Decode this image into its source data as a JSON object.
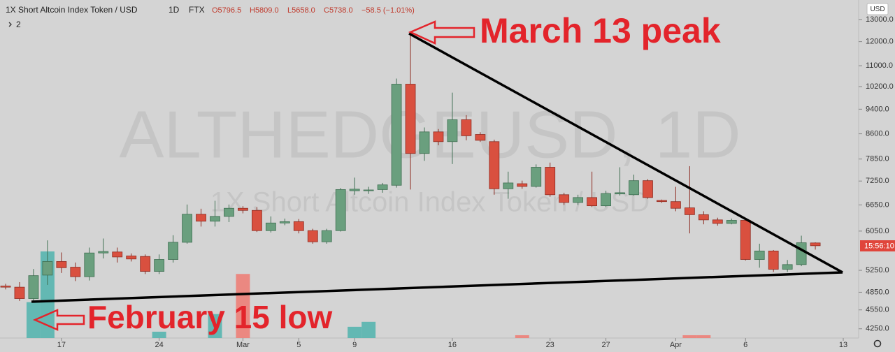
{
  "chart_data": {
    "type": "candlestick",
    "header": {
      "symbol": "1X Short Altcoin Index Token / USD",
      "interval": "1D",
      "exchange": "FTX",
      "open": "O5796.5",
      "high": "H5809.0",
      "low": "L5658.0",
      "close": "C5738.0",
      "change": "−58.5 (−1.01%)",
      "indicators": "2"
    },
    "watermark": {
      "ticker": "ALTHEDGEUSD, 1D",
      "description": "1X Short Altcoin Index Token / USD"
    },
    "currency": "USD",
    "countdown": "15:56:10",
    "annotations": [
      "March 13 peak",
      "February 15 low"
    ],
    "categories": [
      null,
      null,
      null,
      null,
      "17",
      null,
      null,
      null,
      null,
      null,
      null,
      "24",
      null,
      null,
      null,
      null,
      null,
      "Mar",
      null,
      null,
      null,
      "5",
      null,
      null,
      null,
      "9",
      null,
      null,
      null,
      null,
      null,
      null,
      "16",
      null,
      null,
      null,
      null,
      null,
      null,
      "23",
      null,
      null,
      null,
      "27",
      null,
      null,
      null,
      null,
      "Apr",
      null,
      null,
      null,
      null,
      "6",
      null,
      null,
      null,
      null,
      null,
      null,
      "13"
    ],
    "open": [
      4960,
      4940,
      4740,
      5160,
      5420,
      5310,
      5130,
      5590,
      5610,
      5530,
      5520,
      5230,
      5460,
      5810,
      6430,
      6270,
      6380,
      6570,
      6520,
      6060,
      6230,
      6260,
      6060,
      5820,
      6060,
      7000,
      7000,
      7030,
      7140,
      10290,
      8010,
      8660,
      8360,
      9050,
      8580,
      8360,
      7050,
      7180,
      7110,
      7620,
      6900,
      6710,
      6830,
      6630,
      6920,
      6900,
      7260,
      6760,
      6730,
      6580,
      6420,
      6300,
      6220,
      6290,
      5460,
      5630,
      5270,
      5360,
      5796.5,
      null,
      null
    ],
    "high": [
      5000,
      5030,
      5275,
      5850,
      5600,
      5400,
      5700,
      5890,
      5700,
      5580,
      5560,
      5560,
      5960,
      6660,
      6560,
      6750,
      6660,
      6620,
      6600,
      6380,
      6330,
      6320,
      6100,
      6100,
      7070,
      7340,
      7100,
      7200,
      10500,
      12300,
      8800,
      8750,
      9980,
      9200,
      8650,
      8420,
      7500,
      7260,
      7700,
      7750,
      6950,
      6900,
      7500,
      7000,
      7620,
      7420,
      7300,
      6780,
      7100,
      7650,
      6500,
      6350,
      6330,
      6330,
      5780,
      5650,
      5450,
      5950,
      5809,
      null,
      null
    ],
    "low": [
      4900,
      4700,
      4690,
      4980,
      5200,
      5050,
      5060,
      5480,
      5400,
      5420,
      5180,
      5180,
      5400,
      5780,
      6150,
      6150,
      6250,
      6450,
      6030,
      6020,
      6180,
      6000,
      5780,
      5780,
      6040,
      6900,
      6920,
      6950,
      7080,
      7030,
      7800,
      8250,
      7710,
      8400,
      8350,
      6900,
      6800,
      7050,
      7080,
      6850,
      6650,
      6650,
      6600,
      6600,
      6880,
      6880,
      6800,
      6700,
      6500,
      6000,
      6200,
      6170,
      6200,
      5440,
      5300,
      5220,
      5220,
      5330,
      5658,
      null,
      null
    ],
    "close": [
      4940,
      4740,
      5150,
      5420,
      5300,
      5130,
      5590,
      5620,
      5510,
      5470,
      5230,
      5460,
      5810,
      6430,
      6270,
      6380,
      6570,
      6520,
      6060,
      6230,
      6260,
      6060,
      5820,
      6060,
      7030,
      7040,
      7020,
      7150,
      10290,
      8010,
      8660,
      8360,
      9050,
      8540,
      8400,
      7050,
      7200,
      7110,
      7620,
      6900,
      6710,
      6830,
      6630,
      6930,
      6950,
      7260,
      6830,
      6730,
      6570,
      6420,
      6300,
      6220,
      6290,
      5460,
      5630,
      5270,
      5360,
      5800,
      5738,
      null,
      null
    ],
    "volume": [
      0,
      0,
      51,
      123,
      0,
      0,
      0,
      0,
      0,
      0,
      0,
      9,
      0,
      0,
      0,
      34,
      0,
      91,
      0,
      0,
      0,
      0,
      0,
      0,
      0,
      16,
      23,
      0,
      0,
      0,
      0,
      0,
      0,
      0,
      0,
      0,
      0,
      4,
      0,
      0,
      0,
      0,
      0,
      0,
      0,
      0,
      0,
      0,
      0,
      4,
      4,
      0,
      0,
      0,
      0,
      0,
      0,
      0,
      0,
      null,
      null
    ],
    "up_color": "#6a9f7e",
    "down_color": "#d9503f",
    "volume_up_color": "#4fb3ad",
    "volume_down_color": "#ef7a72",
    "log_scale": true,
    "ylim": [
      4110,
      13950
    ],
    "yticks": [
      {
        "value": 4250,
        "label": "4250.0"
      },
      {
        "value": 4550,
        "label": "4550.0"
      },
      {
        "value": 4850,
        "label": "4850.0"
      },
      {
        "value": 5250,
        "label": "5250.0"
      },
      {
        "value": 6050,
        "label": "6050.0"
      },
      {
        "value": 6650,
        "label": "6650.0"
      },
      {
        "value": 7250,
        "label": "7250.0"
      },
      {
        "value": 7850,
        "label": "7850.0"
      },
      {
        "value": 8600,
        "label": "8600.0"
      },
      {
        "value": 9400,
        "label": "9400.0"
      },
      {
        "value": 10200,
        "label": "10200.0"
      },
      {
        "value": 11000,
        "label": "11000.0"
      },
      {
        "value": 12000,
        "label": "12000.0"
      },
      {
        "value": 13000,
        "label": "13000.0"
      }
    ]
  }
}
